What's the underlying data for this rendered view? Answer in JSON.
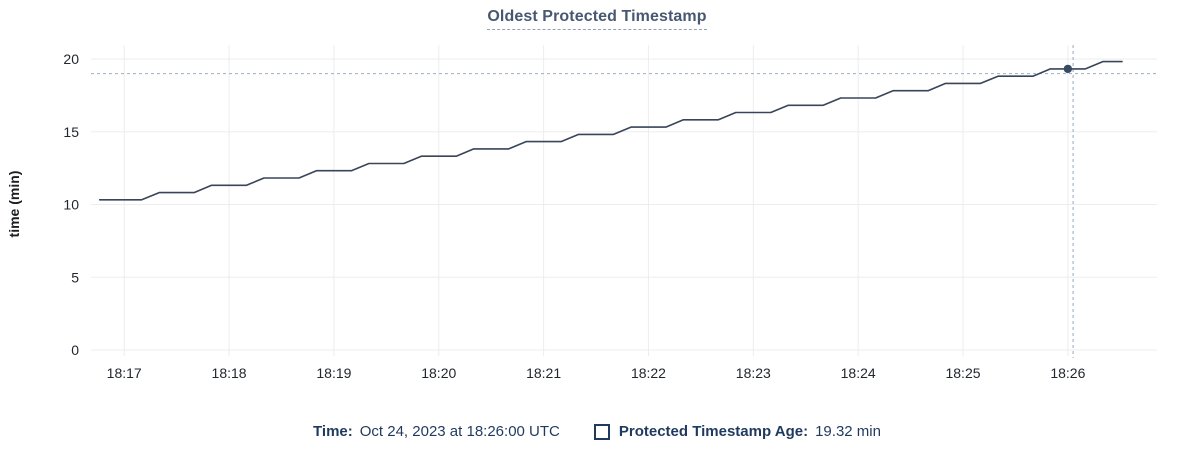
{
  "chart": {
    "title": "Oldest Protected Timestamp",
    "ylabel": "time (min)"
  },
  "legend": {
    "time_label": "Time:",
    "time_value": "Oct 24, 2023 at 18:26:00 UTC",
    "series_label": "Protected Timestamp Age:",
    "series_value": "19.32 min"
  },
  "colors": {
    "line": "#38455a",
    "marker": "#394a63",
    "grid": "#ededef",
    "crosshair": "#a8b7c6",
    "tick_text": "#22272e",
    "title_text": "#475872",
    "legend_text": "#1f3a5f"
  },
  "chart_data": {
    "type": "line",
    "title": "Oldest Protected Timestamp",
    "xlabel": "",
    "ylabel": "time (min)",
    "x_unit": "seconds_after_18:17:00",
    "xlim": [
      -19,
      591
    ],
    "ylim": [
      0,
      20.55
    ],
    "grid": true,
    "legend_position": "bottom",
    "x_ticks": [
      {
        "t": 0,
        "label": "18:17"
      },
      {
        "t": 60,
        "label": "18:18"
      },
      {
        "t": 120,
        "label": "18:19"
      },
      {
        "t": 180,
        "label": "18:20"
      },
      {
        "t": 240,
        "label": "18:21"
      },
      {
        "t": 300,
        "label": "18:22"
      },
      {
        "t": 360,
        "label": "18:23"
      },
      {
        "t": 420,
        "label": "18:24"
      },
      {
        "t": 480,
        "label": "18:25"
      },
      {
        "t": 540,
        "label": "18:26"
      }
    ],
    "y_ticks": [
      0,
      5,
      10,
      15,
      20
    ],
    "series": [
      {
        "name": "Protected Timestamp Age",
        "points": [
          [
            -14,
            10.32
          ],
          [
            10,
            10.32
          ],
          [
            20,
            10.82
          ],
          [
            40,
            10.82
          ],
          [
            50,
            11.32
          ],
          [
            70,
            11.32
          ],
          [
            80,
            11.82
          ],
          [
            100,
            11.82
          ],
          [
            110,
            12.32
          ],
          [
            130,
            12.32
          ],
          [
            140,
            12.82
          ],
          [
            160,
            12.82
          ],
          [
            170,
            13.32
          ],
          [
            190,
            13.32
          ],
          [
            200,
            13.82
          ],
          [
            220,
            13.82
          ],
          [
            230,
            14.32
          ],
          [
            250,
            14.32
          ],
          [
            260,
            14.82
          ],
          [
            280,
            14.82
          ],
          [
            290,
            15.32
          ],
          [
            310,
            15.32
          ],
          [
            320,
            15.82
          ],
          [
            340,
            15.82
          ],
          [
            350,
            16.32
          ],
          [
            370,
            16.32
          ],
          [
            380,
            16.82
          ],
          [
            400,
            16.82
          ],
          [
            410,
            17.32
          ],
          [
            430,
            17.32
          ],
          [
            440,
            17.82
          ],
          [
            460,
            17.82
          ],
          [
            470,
            18.32
          ],
          [
            490,
            18.32
          ],
          [
            500,
            18.82
          ],
          [
            520,
            18.82
          ],
          [
            530,
            19.32
          ],
          [
            550,
            19.32
          ],
          [
            560,
            19.82
          ],
          [
            571,
            19.82
          ]
        ]
      }
    ],
    "crosshair": {
      "x_t": 543,
      "y_value": 19.0
    },
    "marker": {
      "t": 540,
      "value": 19.32,
      "label": "19.32 min"
    }
  }
}
